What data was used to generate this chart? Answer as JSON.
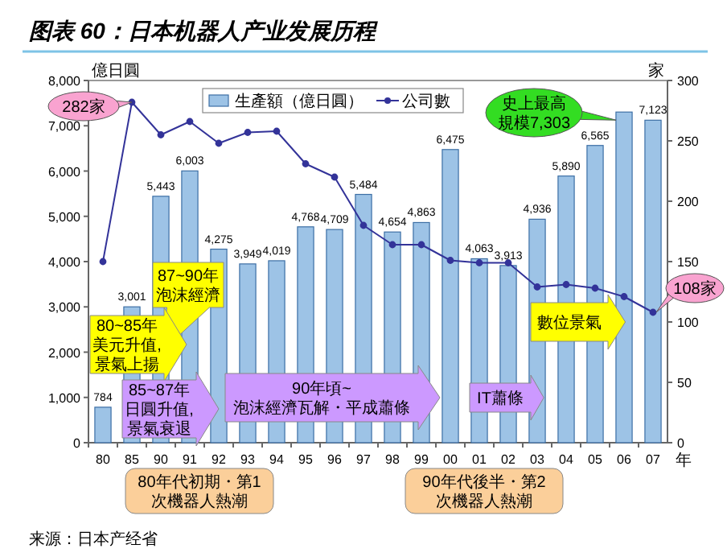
{
  "chart_data": {
    "type": "bar",
    "title": "图表 60：日本机器人产业发展历程",
    "categories": [
      "80",
      "85",
      "90",
      "91",
      "92",
      "93",
      "94",
      "95",
      "96",
      "97",
      "98",
      "99",
      "00",
      "01",
      "02",
      "03",
      "04",
      "05",
      "06",
      "07"
    ],
    "xlabel": "年",
    "ylabel": "億日圓",
    "y2label": "家",
    "series": [
      {
        "name": "生產額（億日圓）",
        "color": "#9dc3e6",
        "values": [
          784,
          3001,
          5443,
          6003,
          4275,
          3949,
          4019,
          4768,
          4709,
          5484,
          4654,
          4863,
          6475,
          4063,
          3913,
          4936,
          5890,
          6565,
          7303,
          7123
        ],
        "value_labels": [
          "784",
          "3,001",
          "5,443",
          "6,003",
          "4,275",
          "3,949",
          "4,019",
          "4,768",
          "4,709",
          "5,484",
          "4,654",
          "4,863",
          "6,475",
          "4,063",
          "3,913",
          "4,936",
          "5,890",
          "6,565",
          null,
          "7,123"
        ]
      },
      {
        "name": "公司數",
        "type": "line",
        "axis": "y2",
        "color": "#333399",
        "values": [
          150,
          282,
          255,
          266,
          248,
          257,
          258,
          231,
          220,
          180,
          164,
          164,
          151,
          149,
          149,
          129,
          131,
          128,
          121,
          108
        ]
      }
    ],
    "marker": "circle",
    "legend": "top",
    "grid": false,
    "ylim": [
      0,
      8000
    ],
    "yticks": [
      {
        "value": 0,
        "label": "0"
      },
      {
        "value": 1000,
        "label": "1,000"
      },
      {
        "value": 2000,
        "label": "2,000"
      },
      {
        "value": 3000,
        "label": "3,000"
      },
      {
        "value": 4000,
        "label": "4,000"
      },
      {
        "value": 5000,
        "label": "5,000"
      },
      {
        "value": 6000,
        "label": "6,000"
      },
      {
        "value": 7000,
        "label": "7,000"
      },
      {
        "value": 8000,
        "label": "8,000"
      }
    ],
    "y2lim": [
      0,
      300
    ],
    "y2ticks": [
      0,
      50,
      100,
      150,
      200,
      250,
      300
    ],
    "annotations": [
      "282家",
      "史上最高規模7,303",
      {
        "text": "87~90年泡沫經濟",
        "x": "90",
        "y": 2000
      },
      "80~85年美元升值,景氣上揚",
      "85~87年日圓升值,景氣衰退",
      "90年頃~泡沫經濟瓦解・平成蕭條",
      "IT蕭條",
      "數位景氣",
      "80年代初期・第1次機器人熱潮",
      "90年代後半・第2次機器人熱潮",
      "108家",
      "来源：日本产经省"
    ]
  }
}
